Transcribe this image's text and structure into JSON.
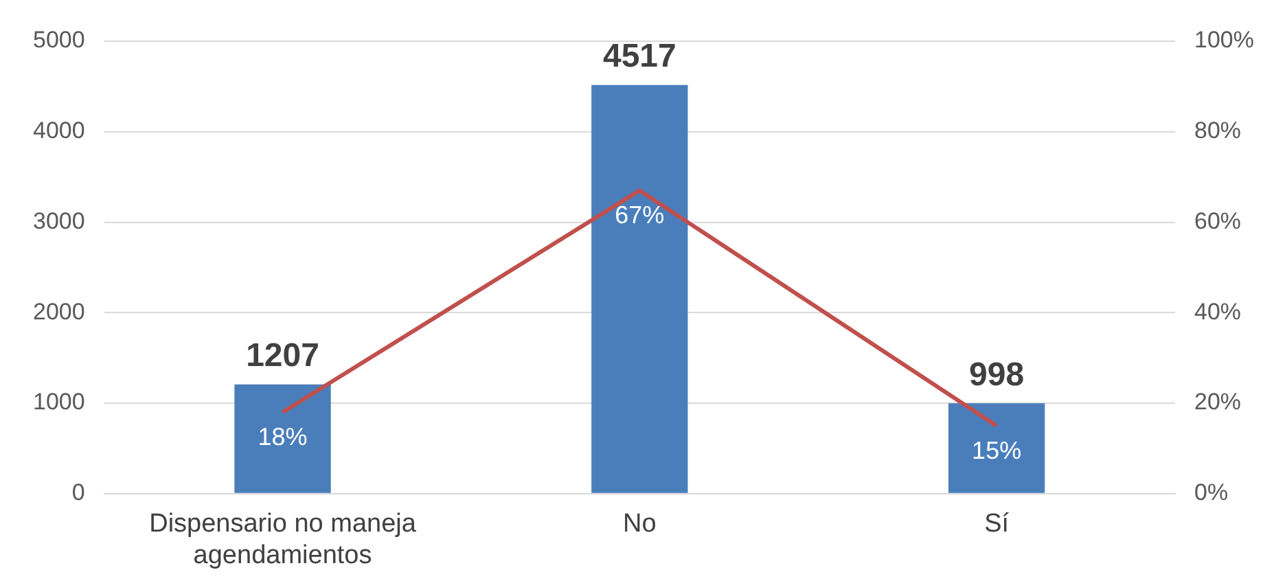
{
  "chart_data": {
    "type": "bar",
    "categories": [
      "Dispensario no maneja agendamientos",
      "No",
      "Sí"
    ],
    "series": [
      {
        "color": "#4a7ebb",
        "values": [
          1207,
          4517,
          998
        ]
      },
      {
        "type": "line",
        "axis": "y2",
        "color": "#c0504d",
        "values": [
          18,
          67,
          15
        ],
        "value_labels": [
          "18%",
          "67%",
          "15%"
        ]
      }
    ],
    "ylim": [
      0,
      5000
    ],
    "yticks": [
      0,
      1000,
      2000,
      3000,
      4000,
      5000
    ],
    "y2lim": [
      0,
      100
    ],
    "y2ticks": [
      {
        "value": 0,
        "label": "0%"
      },
      {
        "value": 20,
        "label": "20%"
      },
      {
        "value": 40,
        "label": "40%"
      },
      {
        "value": 60,
        "label": "60%"
      },
      {
        "value": 80,
        "label": "80%"
      },
      {
        "value": 100,
        "label": "100%"
      }
    ],
    "grid": "y",
    "legend": false,
    "data_labels": true,
    "marker": "none",
    "line_style": "solid"
  }
}
